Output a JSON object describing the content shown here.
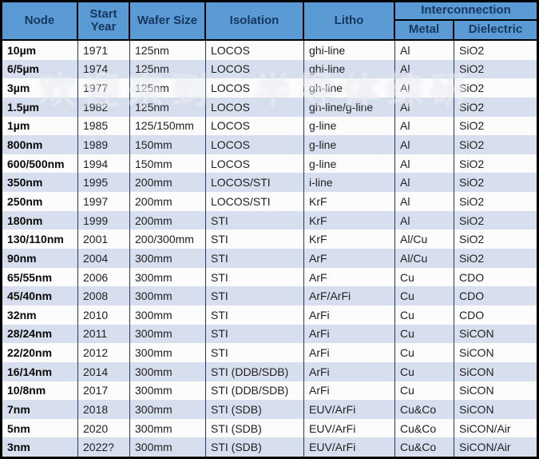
{
  "chart_data": {
    "type": "table",
    "columns": [
      "Node",
      "Start Year",
      "Wafer Size",
      "Isolation",
      "Litho",
      "Metal",
      "Dielectric"
    ],
    "column_keys": [
      "node",
      "start-year",
      "wafer-size",
      "isolation",
      "litho",
      "metal",
      "dielectric"
    ],
    "column_groups": {
      "interconnection_label": "Interconnection"
    },
    "rows": [
      [
        "10µm",
        "1971",
        "125nm",
        "LOCOS",
        "ghi-line",
        "Al",
        "SiO2"
      ],
      [
        "6/5µm",
        "1974",
        "125nm",
        "LOCOS",
        "ghi-line",
        "Al",
        "SiO2"
      ],
      [
        "3µm",
        "1977",
        "125nm",
        "LOCOS",
        "gh-line",
        "Al",
        "SiO2"
      ],
      [
        "1.5µm",
        "1982",
        "125nm",
        "LOCOS",
        "gh-line/g-line",
        "Al",
        "SiO2"
      ],
      [
        "1µm",
        "1985",
        "125/150mm",
        "LOCOS",
        "g-line",
        "Al",
        "SiO2"
      ],
      [
        "800nm",
        "1989",
        "150mm",
        "LOCOS",
        "g-line",
        "Al",
        "SiO2"
      ],
      [
        "600/500nm",
        "1994",
        "150mm",
        "LOCOS",
        "g-line",
        "Al",
        "SiO2"
      ],
      [
        "350nm",
        "1995",
        "200mm",
        "LOCOS/STI",
        "i-line",
        "Al",
        "SiO2"
      ],
      [
        "250nm",
        "1997",
        "200mm",
        "LOCOS/STI",
        "KrF",
        "Al",
        "SiO2"
      ],
      [
        "180nm",
        "1999",
        "200mm",
        "STI",
        "KrF",
        "Al",
        "SiO2"
      ],
      [
        "130/110nm",
        "2001",
        "200/300mm",
        "STI",
        "KrF",
        "Al/Cu",
        "SiO2"
      ],
      [
        "90nm",
        "2004",
        "300mm",
        "STI",
        "ArF",
        "Al/Cu",
        "SiO2"
      ],
      [
        "65/55nm",
        "2006",
        "300mm",
        "STI",
        "ArF",
        "Cu",
        "CDO"
      ],
      [
        "45/40nm",
        "2008",
        "300mm",
        "STI",
        "ArF/ArFi",
        "Cu",
        "CDO"
      ],
      [
        "32nm",
        "2010",
        "300mm",
        "STI",
        "ArFi",
        "Cu",
        "CDO"
      ],
      [
        "28/24nm",
        "2011",
        "300mm",
        "STI",
        "ArFi",
        "Cu",
        "SiCON"
      ],
      [
        "22/20nm",
        "2012",
        "300mm",
        "STI",
        "ArFi",
        "Cu",
        "SiCON"
      ],
      [
        "16/14nm",
        "2014",
        "300mm",
        "STI (DDB/SDB)",
        "ArFi",
        "Cu",
        "SiCON"
      ],
      [
        "10/8nm",
        "2017",
        "300mm",
        "STI (DDB/SDB)",
        "ArFi",
        "Cu",
        "SiCON"
      ],
      [
        "7nm",
        "2018",
        "300mm",
        "STI (SDB)",
        "EUV/ArFi",
        "Cu&Co",
        "SiCON"
      ],
      [
        "5nm",
        "2020",
        "300mm",
        "STI (SDB)",
        "EUV/ArFi",
        "Cu&Co",
        "SiCON/Air"
      ],
      [
        "3nm",
        "2022?",
        "300mm",
        "STI (SDB)",
        "EUV/ArFi",
        "Cu&Co",
        "SiCON/Air"
      ]
    ]
  },
  "watermark": {
    "text": "欢迎来到 半导体综研"
  },
  "colors": {
    "header_bg": "#5B9BD5",
    "header_text": "#17375E",
    "row_bg": "#FCFCFD",
    "row_alt_bg": "#D7DFEE",
    "grid_line": "#203A60",
    "frame": "#000000"
  }
}
